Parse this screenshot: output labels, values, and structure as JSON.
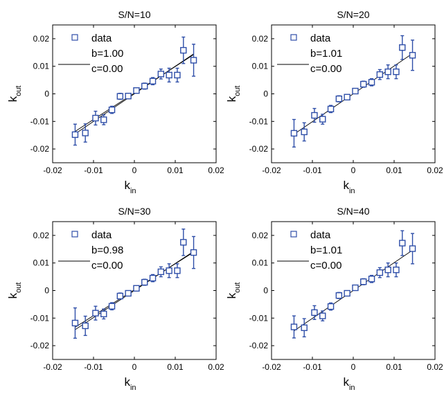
{
  "chart_data": [
    {
      "type": "scatter",
      "title": "S/N=10",
      "xlabel": "k",
      "xlabel_sub": "in",
      "ylabel": "k",
      "ylabel_sub": "out",
      "xlim": [
        -0.02,
        0.02
      ],
      "ylim": [
        -0.025,
        0.025
      ],
      "xticks": [
        "-0.02",
        "-0.01",
        "0",
        "0.01",
        "0.02"
      ],
      "yticks": [
        "-0.02",
        "-0.01",
        "0",
        "0.01",
        "0.02"
      ],
      "legend": {
        "data_label": "data",
        "fit_b": "b=1.00",
        "fit_c": "c=0.00"
      },
      "series": [
        {
          "name": "data",
          "x": [
            -0.0145,
            -0.012,
            -0.0095,
            -0.0075,
            -0.0055,
            -0.0035,
            -0.0015,
            0.0005,
            0.0025,
            0.0045,
            0.0065,
            0.0085,
            0.0105,
            0.012,
            0.0145
          ],
          "y": [
            -0.0148,
            -0.0142,
            -0.0088,
            -0.0094,
            -0.0058,
            -0.0009,
            -0.0008,
            0.0012,
            0.0028,
            0.0046,
            0.0072,
            0.0068,
            0.0068,
            0.0158,
            0.0122
          ],
          "err": [
            0.0038,
            0.0033,
            0.0025,
            0.0018,
            0.0013,
            0.0011,
            0.0009,
            0.0009,
            0.0011,
            0.0013,
            0.0018,
            0.0025,
            0.0025,
            0.0048,
            0.0058
          ],
          "color": "#2e4ea8"
        }
      ],
      "fit_lines": [
        {
          "b": 1.0,
          "c": 0.0
        },
        {
          "b": 0.96,
          "c": 0.0003
        }
      ]
    },
    {
      "type": "scatter",
      "title": "S/N=20",
      "xlabel": "k",
      "xlabel_sub": "in",
      "ylabel": "k",
      "ylabel_sub": "out",
      "xlim": [
        -0.02,
        0.02
      ],
      "ylim": [
        -0.025,
        0.025
      ],
      "xticks": [
        "-0.02",
        "-0.01",
        "0",
        "0.01",
        "0.02"
      ],
      "yticks": [
        "-0.02",
        "-0.01",
        "0",
        "0.01",
        "0.02"
      ],
      "legend": {
        "data_label": "data",
        "fit_b": "b=1.01",
        "fit_c": "c=0.00"
      },
      "series": [
        {
          "name": "data",
          "x": [
            -0.0145,
            -0.012,
            -0.0095,
            -0.0075,
            -0.0055,
            -0.0035,
            -0.0015,
            0.0005,
            0.0025,
            0.0045,
            0.0065,
            0.0085,
            0.0105,
            0.012,
            0.0145
          ],
          "y": [
            -0.0143,
            -0.0138,
            -0.0078,
            -0.0092,
            -0.0055,
            -0.0018,
            -0.0012,
            0.001,
            0.0035,
            0.0042,
            0.007,
            0.008,
            0.008,
            0.0168,
            0.014
          ],
          "err": [
            0.005,
            0.0033,
            0.0025,
            0.0018,
            0.0013,
            0.0011,
            0.0009,
            0.0009,
            0.0011,
            0.0013,
            0.0018,
            0.0025,
            0.0025,
            0.0043,
            0.0055
          ],
          "color": "#2e4ea8"
        }
      ],
      "fit_lines": [
        {
          "b": 1.01,
          "c": 0.0
        }
      ]
    },
    {
      "type": "scatter",
      "title": "S/N=30",
      "xlabel": "k",
      "xlabel_sub": "in",
      "ylabel": "k",
      "ylabel_sub": "out",
      "xlim": [
        -0.02,
        0.02
      ],
      "ylim": [
        -0.025,
        0.025
      ],
      "xticks": [
        "-0.02",
        "-0.01",
        "0",
        "0.01",
        "0.02"
      ],
      "yticks": [
        "-0.02",
        "-0.01",
        "0",
        "0.01",
        "0.02"
      ],
      "legend": {
        "data_label": "data",
        "fit_b": "b=0.98",
        "fit_c": "c=0.00"
      },
      "series": [
        {
          "name": "data",
          "x": [
            -0.0145,
            -0.012,
            -0.0095,
            -0.0075,
            -0.0055,
            -0.0035,
            -0.0015,
            0.0005,
            0.0025,
            0.0045,
            0.0065,
            0.0085,
            0.0105,
            0.012,
            0.0145
          ],
          "y": [
            -0.0118,
            -0.0128,
            -0.0082,
            -0.0085,
            -0.0057,
            -0.002,
            -0.001,
            0.0008,
            0.003,
            0.0045,
            0.0068,
            0.0072,
            0.0072,
            0.0175,
            0.0138
          ],
          "err": [
            0.0055,
            0.0035,
            0.0025,
            0.0018,
            0.0013,
            0.0011,
            0.0009,
            0.0009,
            0.0011,
            0.0013,
            0.0018,
            0.0025,
            0.0025,
            0.0048,
            0.0058
          ],
          "color": "#2e4ea8"
        }
      ],
      "fit_lines": [
        {
          "b": 0.98,
          "c": 0.0
        },
        {
          "b": 0.94,
          "c": 0.0003
        }
      ]
    },
    {
      "type": "scatter",
      "title": "S/N=40",
      "xlabel": "k",
      "xlabel_sub": "in",
      "ylabel": "k",
      "ylabel_sub": "out",
      "xlim": [
        -0.02,
        0.02
      ],
      "ylim": [
        -0.025,
        0.025
      ],
      "xticks": [
        "-0.02",
        "-0.01",
        "0",
        "0.01",
        "0.02"
      ],
      "yticks": [
        "-0.02",
        "-0.01",
        "0",
        "0.01",
        "0.02"
      ],
      "legend": {
        "data_label": "data",
        "fit_b": "b=1.01",
        "fit_c": "c=0.00"
      },
      "series": [
        {
          "name": "data",
          "x": [
            -0.0145,
            -0.012,
            -0.0095,
            -0.0075,
            -0.0055,
            -0.0035,
            -0.0015,
            0.0005,
            0.0025,
            0.0045,
            0.0065,
            0.0085,
            0.0105,
            0.012,
            0.0145
          ],
          "y": [
            -0.0132,
            -0.0135,
            -0.008,
            -0.0092,
            -0.0058,
            -0.0018,
            -0.001,
            0.001,
            0.0032,
            0.0042,
            0.0065,
            0.0075,
            0.0075,
            0.0172,
            0.0152
          ],
          "err": [
            0.004,
            0.0033,
            0.0025,
            0.0018,
            0.0013,
            0.0011,
            0.0009,
            0.0009,
            0.0011,
            0.0013,
            0.0018,
            0.0025,
            0.0025,
            0.0045,
            0.0055
          ],
          "color": "#2e4ea8"
        }
      ],
      "fit_lines": [
        {
          "b": 1.01,
          "c": 0.0
        }
      ]
    }
  ]
}
